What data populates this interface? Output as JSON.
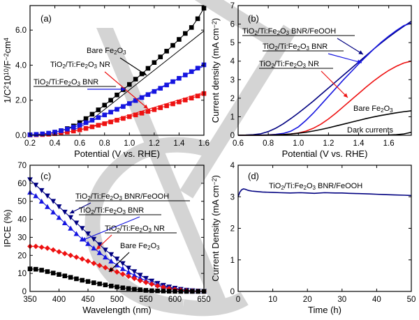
{
  "colors": {
    "black": "#000000",
    "blue": "#1515e0",
    "red": "#ee1111",
    "navy": "#000080",
    "watermark": "#d4d4d4"
  },
  "watermark": {
    "icon": "large-grey-logo-watermark"
  },
  "chart_data": [
    {
      "type": "line",
      "panel": "(a)",
      "xlabel": "Potential (V vs. RHE)",
      "ylabel": "1/C²10¹⁰/F⁻²cm⁴",
      "xlim": [
        0.2,
        1.6
      ],
      "ylim": [
        0,
        7.4
      ],
      "xticks": [
        0.2,
        0.4,
        0.6,
        0.8,
        1.0,
        1.2,
        1.4,
        1.6
      ],
      "xtick_labels": [
        "0.2",
        "0.4",
        "0.6",
        "0.8",
        "1.0",
        "1.2",
        "1.4",
        "1.6"
      ],
      "yticks": [
        0,
        2,
        4,
        6
      ],
      "ytick_labels": [
        "0.0",
        "2.0",
        "4.0",
        "6.0"
      ],
      "series": [
        {
          "name": "Bare Fe₂O₃",
          "color": "#000000",
          "marker": "square",
          "x": [
            0.2,
            0.25,
            0.3,
            0.35,
            0.4,
            0.45,
            0.5,
            0.55,
            0.6,
            0.65,
            0.7,
            0.75,
            0.8,
            0.85,
            0.9,
            0.95,
            1.0,
            1.05,
            1.1,
            1.15,
            1.2,
            1.25,
            1.3,
            1.35,
            1.4,
            1.45,
            1.5,
            1.55,
            1.6
          ],
          "y": [
            0.02,
            0.03,
            0.06,
            0.1,
            0.17,
            0.26,
            0.38,
            0.53,
            0.72,
            0.95,
            1.2,
            1.45,
            1.72,
            2.0,
            2.3,
            2.6,
            2.9,
            3.2,
            3.5,
            3.82,
            4.15,
            4.47,
            4.8,
            5.13,
            5.47,
            5.81,
            6.15,
            6.65,
            7.25
          ],
          "fit": {
            "x": [
              0.68,
              1.6
            ],
            "y": [
              0.8,
              5.95
            ]
          }
        },
        {
          "name": "TiO₂/Ti:Fe₂O₃ NR",
          "color": "#ee1111",
          "marker": "square",
          "x": [
            0.2,
            0.25,
            0.3,
            0.35,
            0.4,
            0.45,
            0.5,
            0.55,
            0.6,
            0.65,
            0.7,
            0.75,
            0.8,
            0.85,
            0.9,
            0.95,
            1.0,
            1.05,
            1.1,
            1.15,
            1.2,
            1.25,
            1.3,
            1.35,
            1.4,
            1.45,
            1.5,
            1.55,
            1.6
          ],
          "y": [
            0.02,
            0.03,
            0.04,
            0.06,
            0.09,
            0.13,
            0.18,
            0.24,
            0.31,
            0.39,
            0.48,
            0.57,
            0.66,
            0.76,
            0.86,
            0.96,
            1.06,
            1.16,
            1.26,
            1.36,
            1.46,
            1.57,
            1.68,
            1.79,
            1.9,
            2.01,
            2.12,
            2.24,
            2.38
          ],
          "fit": {
            "x": [
              0.6,
              1.6
            ],
            "y": [
              0.3,
              2.45
            ]
          }
        },
        {
          "name": "TiO₂/Ti:Fe₂O₃ BNR",
          "color": "#1515e0",
          "marker": "square",
          "x": [
            0.2,
            0.25,
            0.3,
            0.35,
            0.4,
            0.45,
            0.5,
            0.55,
            0.6,
            0.65,
            0.7,
            0.75,
            0.8,
            0.85,
            0.9,
            0.95,
            1.0,
            1.05,
            1.1,
            1.15,
            1.2,
            1.25,
            1.3,
            1.35,
            1.4,
            1.45,
            1.5,
            1.55,
            1.6
          ],
          "y": [
            0.03,
            0.05,
            0.08,
            0.12,
            0.18,
            0.26,
            0.35,
            0.46,
            0.58,
            0.72,
            0.86,
            1.01,
            1.16,
            1.32,
            1.48,
            1.64,
            1.81,
            1.98,
            2.15,
            2.32,
            2.5,
            2.68,
            2.87,
            3.06,
            3.25,
            3.44,
            3.63,
            3.83,
            4.02
          ],
          "fit": {
            "x": [
              0.55,
              1.6
            ],
            "y": [
              0.3,
              3.95
            ]
          }
        }
      ],
      "annotations": [
        {
          "text": "Bare Fe₂O₃"
        },
        {
          "text": "TiO₂/Ti:Fe₂O₃ NR"
        },
        {
          "text": "TiO₂/Ti:Fe₂O₃ BNR"
        }
      ]
    },
    {
      "type": "line",
      "panel": "(b)",
      "xlabel": "Potential (V vs. RHE)",
      "ylabel": "Current density (mA cm⁻²)",
      "xlim": [
        0.6,
        1.75
      ],
      "ylim": [
        0,
        7
      ],
      "xticks": [
        0.6,
        0.8,
        1.0,
        1.2,
        1.4,
        1.6
      ],
      "xtick_labels": [
        "0.6",
        "0.8",
        "1.0",
        "1.2",
        "1.4",
        "1.6"
      ],
      "yticks": [
        0,
        1,
        2,
        3,
        4,
        5,
        6,
        7
      ],
      "ytick_labels": [
        "0",
        "1",
        "2",
        "3",
        "4",
        "5",
        "6",
        "7"
      ],
      "series": [
        {
          "name": "TiO₂/Ti:Fe₂O₃ BNR/FeOOH",
          "color": "#000080",
          "x": [
            0.6,
            0.65,
            0.7,
            0.75,
            0.8,
            0.85,
            0.9,
            0.95,
            1.0,
            1.05,
            1.1,
            1.15,
            1.2,
            1.25,
            1.3,
            1.35,
            1.4,
            1.45,
            1.5,
            1.55,
            1.6,
            1.65,
            1.7,
            1.75
          ],
          "y": [
            0,
            0.01,
            0.03,
            0.08,
            0.2,
            0.38,
            0.62,
            0.9,
            1.2,
            1.52,
            1.85,
            2.2,
            2.55,
            2.9,
            3.25,
            3.6,
            3.95,
            4.3,
            4.65,
            4.98,
            5.3,
            5.6,
            5.88,
            6.15
          ]
        },
        {
          "name": "TiO₂/Ti:Fe₂O₃ BNR",
          "color": "#1515e0",
          "x": [
            0.6,
            0.65,
            0.7,
            0.75,
            0.8,
            0.85,
            0.9,
            0.95,
            1.0,
            1.05,
            1.1,
            1.15,
            1.2,
            1.25,
            1.3,
            1.35,
            1.4,
            1.45,
            1.5,
            1.55,
            1.6,
            1.65,
            1.7,
            1.75
          ],
          "y": [
            0,
            0,
            0,
            0.01,
            0.02,
            0.05,
            0.1,
            0.22,
            0.45,
            0.8,
            1.2,
            1.65,
            2.1,
            2.55,
            3.0,
            3.42,
            3.85,
            4.25,
            4.65,
            5.02,
            5.35,
            5.65,
            5.92,
            6.05
          ]
        },
        {
          "name": "TiO₂/Ti:Fe₂O₃ NR",
          "color": "#ee1111",
          "x": [
            0.6,
            0.65,
            0.7,
            0.75,
            0.8,
            0.85,
            0.9,
            0.95,
            1.0,
            1.05,
            1.1,
            1.15,
            1.2,
            1.25,
            1.3,
            1.35,
            1.4,
            1.45,
            1.5,
            1.55,
            1.6,
            1.65,
            1.7,
            1.75
          ],
          "y": [
            0,
            0,
            0,
            0,
            0.01,
            0.02,
            0.04,
            0.07,
            0.12,
            0.22,
            0.38,
            0.6,
            0.88,
            1.2,
            1.55,
            1.9,
            2.25,
            2.6,
            2.93,
            3.23,
            3.5,
            3.72,
            3.9,
            4.0
          ]
        },
        {
          "name": "Bare Fe₂O₃",
          "color": "#000000",
          "x": [
            0.6,
            0.65,
            0.7,
            0.75,
            0.8,
            0.85,
            0.9,
            0.95,
            1.0,
            1.05,
            1.1,
            1.15,
            1.2,
            1.25,
            1.3,
            1.35,
            1.4,
            1.45,
            1.5,
            1.55,
            1.6,
            1.65,
            1.7,
            1.75
          ],
          "y": [
            0,
            0,
            0,
            0,
            0.01,
            0.02,
            0.04,
            0.07,
            0.11,
            0.16,
            0.23,
            0.31,
            0.4,
            0.5,
            0.6,
            0.7,
            0.8,
            0.9,
            0.99,
            1.07,
            1.14,
            1.21,
            1.27,
            1.32
          ]
        },
        {
          "name": "Dark currents",
          "color": "#000000",
          "x": [
            0.6,
            0.7,
            0.8,
            0.9,
            1.0,
            1.1,
            1.2,
            1.3,
            1.4,
            1.5,
            1.6,
            1.65,
            1.7,
            1.75
          ],
          "y": [
            0,
            0,
            0,
            0,
            0,
            0,
            0,
            0,
            0,
            0,
            0.01,
            0.03,
            0.07,
            0.16
          ]
        }
      ],
      "annotations": [
        {
          "text": "TiO₂/Ti:Fe₂O₃ BNR/FeOOH"
        },
        {
          "text": "TiO₂/Ti:Fe₂O₃ BNR"
        },
        {
          "text": "TiO₂/Ti:Fe₂O₃ NR"
        },
        {
          "text": "Bare Fe₂O₃"
        },
        {
          "text": "Dark currents"
        }
      ]
    },
    {
      "type": "line",
      "panel": "(c)",
      "xlabel": "Wavelength (nm)",
      "ylabel": "IPCE (%)",
      "xlim": [
        350,
        650
      ],
      "ylim": [
        0,
        70
      ],
      "xticks": [
        350,
        400,
        450,
        500,
        550,
        600,
        650
      ],
      "xtick_labels": [
        "350",
        "400",
        "450",
        "500",
        "550",
        "600",
        "650"
      ],
      "yticks": [
        0,
        10,
        20,
        30,
        40,
        50,
        60,
        70
      ],
      "ytick_labels": [
        "0",
        "10",
        "20",
        "30",
        "40",
        "50",
        "60",
        "70"
      ],
      "series": [
        {
          "name": "TiO₂/Ti:Fe₂O₃ BNR/FeOOH",
          "color": "#000080",
          "marker": "triangle-down",
          "x": [
            350,
            360,
            370,
            380,
            390,
            400,
            410,
            420,
            430,
            440,
            450,
            460,
            470,
            480,
            490,
            500,
            510,
            520,
            530,
            540,
            550,
            560,
            570,
            580,
            590,
            600,
            610,
            620,
            630,
            640,
            650
          ],
          "y": [
            62,
            59,
            56,
            53,
            50,
            47,
            44,
            41,
            38,
            35,
            32,
            29,
            26,
            23,
            20.5,
            18,
            15.5,
            13,
            11,
            9,
            7.3,
            5.8,
            4.5,
            3.4,
            2.5,
            1.8,
            1.2,
            0.7,
            0.4,
            0.2,
            0.1
          ]
        },
        {
          "name": "TiO₂/Ti:Fe₂O₃ BNR",
          "color": "#1515e0",
          "marker": "triangle-up",
          "x": [
            350,
            360,
            370,
            380,
            390,
            400,
            410,
            420,
            430,
            440,
            450,
            460,
            470,
            480,
            490,
            500,
            510,
            520,
            530,
            540,
            550,
            560,
            570,
            580,
            590,
            600,
            610,
            620,
            630,
            640,
            650
          ],
          "y": [
            55,
            53,
            50,
            47,
            44,
            41,
            38,
            35,
            32,
            29,
            26.5,
            24,
            21.5,
            19,
            16.8,
            14.6,
            12.6,
            10.7,
            9,
            7.4,
            6,
            4.8,
            3.7,
            2.8,
            2,
            1.4,
            0.9,
            0.5,
            0.3,
            0.15,
            0.1
          ]
        },
        {
          "name": "TiO₂/Ti:Fe₂O₃ NR",
          "color": "#ee1111",
          "marker": "diamond",
          "x": [
            350,
            360,
            370,
            380,
            390,
            400,
            410,
            420,
            430,
            440,
            450,
            460,
            470,
            480,
            490,
            500,
            510,
            520,
            530,
            540,
            550,
            560,
            570,
            580,
            590,
            600,
            610,
            620,
            630,
            640,
            650
          ],
          "y": [
            25,
            25,
            24.5,
            24,
            23,
            22,
            21,
            20,
            19,
            18,
            16.8,
            15.6,
            14.4,
            13.2,
            12,
            10.8,
            9.6,
            8.4,
            7.2,
            6,
            5,
            4,
            3.1,
            2.3,
            1.6,
            1.1,
            0.7,
            0.4,
            0.2,
            0.1,
            0.05
          ]
        },
        {
          "name": "Bare Fe₂O₃",
          "color": "#000000",
          "marker": "square",
          "x": [
            350,
            360,
            370,
            380,
            390,
            400,
            410,
            420,
            430,
            440,
            450,
            460,
            470,
            480,
            490,
            500,
            510,
            520,
            530,
            540,
            550,
            560,
            570,
            580,
            590,
            600,
            610,
            620,
            630,
            640,
            650
          ],
          "y": [
            12.5,
            12.3,
            11.8,
            11,
            10.2,
            9.4,
            8.6,
            7.8,
            7,
            6.2,
            5.5,
            4.8,
            4.2,
            3.6,
            3,
            2.5,
            2,
            1.6,
            1.2,
            0.9,
            0.6,
            0.4,
            0.3,
            0.2,
            0.1,
            0.05,
            0,
            0,
            0,
            0,
            0
          ]
        }
      ],
      "annotations": [
        {
          "text": "TiO₂/Ti:Fe₂O₃ BNR/FeOOH"
        },
        {
          "text": "TiO₂/Ti:Fe₂O₃ BNR"
        },
        {
          "text": "TiO₂/Ti:Fe₂O₃ NR"
        },
        {
          "text": "Bare Fe₂O₃"
        }
      ]
    },
    {
      "type": "line",
      "panel": "(d)",
      "xlabel": "Time (h)",
      "ylabel": "Current Density (mA cm⁻²)",
      "xlim": [
        0,
        50
      ],
      "ylim": [
        0,
        4
      ],
      "xticks": [
        0,
        10,
        20,
        30,
        40,
        50
      ],
      "xtick_labels": [
        "0",
        "10",
        "20",
        "30",
        "40",
        "50"
      ],
      "yticks": [
        0,
        1,
        2,
        3,
        4
      ],
      "ytick_labels": [
        "0",
        "1",
        "2",
        "3",
        "4"
      ],
      "series": [
        {
          "name": "TiO₂/Ti:Fe₂O₃ BNR/FeOOH",
          "color": "#000080",
          "x": [
            0,
            0.5,
            1,
            1.5,
            2,
            3,
            4,
            5,
            7,
            10,
            12,
            15,
            18,
            20,
            22,
            25,
            28,
            30,
            32,
            35,
            38,
            40,
            42,
            45,
            48,
            50
          ],
          "y": [
            3.0,
            3.15,
            3.22,
            3.25,
            3.24,
            3.2,
            3.18,
            3.17,
            3.15,
            3.14,
            3.13,
            3.12,
            3.13,
            3.12,
            3.11,
            3.13,
            3.12,
            3.12,
            3.11,
            3.1,
            3.09,
            3.08,
            3.07,
            3.06,
            3.05,
            3.04
          ]
        }
      ],
      "annotations": [
        {
          "text": "TiO₂/Ti:Fe₂O₃ BNR/FeOOH"
        }
      ]
    }
  ]
}
